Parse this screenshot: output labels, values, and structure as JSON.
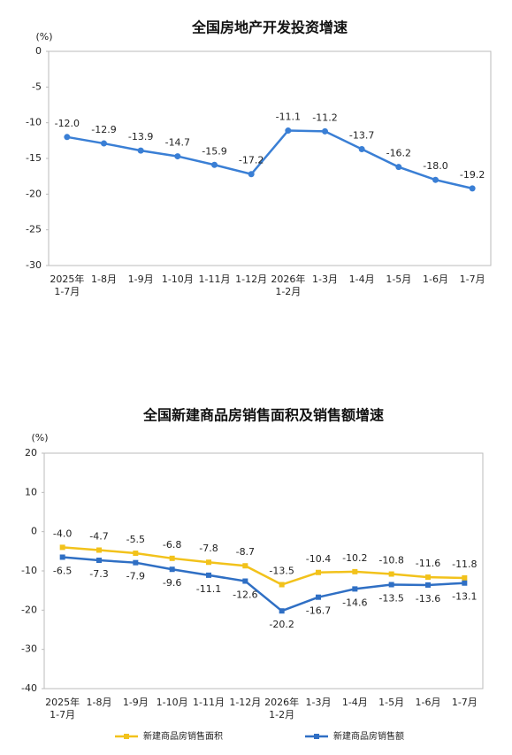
{
  "chart_data": [
    {
      "type": "line",
      "title": "全国房地产开发投资增速",
      "y_label": "(%)",
      "categories": [
        [
          "2025年",
          "1-7月"
        ],
        [
          "1-8月"
        ],
        [
          "1-9月"
        ],
        [
          "1-10月"
        ],
        [
          "1-11月"
        ],
        [
          "1-12月"
        ],
        [
          "2026年",
          "1-2月"
        ],
        [
          "1-3月"
        ],
        [
          "1-4月"
        ],
        [
          "1-5月"
        ],
        [
          "1-6月"
        ],
        [
          "1-7月"
        ]
      ],
      "series": [
        {
          "color": "#3a7fd5",
          "values": [
            -12.0,
            -12.9,
            -13.9,
            -14.7,
            -15.9,
            -17.2,
            -11.1,
            -11.2,
            -13.7,
            -16.2,
            -18.0,
            -19.2
          ],
          "value_labels": [
            "-12.0",
            "-12.9",
            "-13.9",
            "-14.7",
            "-15.9",
            "-17.2",
            "-11.1",
            "-11.2",
            "-13.7",
            "-16.2",
            "-18.0",
            "-19.2"
          ]
        }
      ],
      "ylim": [
        -30,
        0
      ],
      "yticks": [
        0,
        -5,
        -10,
        -15,
        -20,
        -25,
        -30
      ],
      "grid": false
    },
    {
      "type": "line",
      "title": "全国新建商品房销售面积及销售额增速",
      "y_label": "(%)",
      "categories": [
        [
          "2025年",
          "1-7月"
        ],
        [
          "1-8月"
        ],
        [
          "1-9月"
        ],
        [
          "1-10月"
        ],
        [
          "1-11月"
        ],
        [
          "1-12月"
        ],
        [
          "2026年",
          "1-2月"
        ],
        [
          "1-3月"
        ],
        [
          "1-4月"
        ],
        [
          "1-5月"
        ],
        [
          "1-6月"
        ],
        [
          "1-7月"
        ]
      ],
      "series": [
        {
          "name": "新建商品房销售面积",
          "color": "#f2c21b",
          "values": [
            -4.0,
            -4.7,
            -5.5,
            -6.8,
            -7.8,
            -8.7,
            -13.5,
            -10.4,
            -10.2,
            -10.8,
            -11.6,
            -11.8
          ],
          "value_labels": [
            "-4.0",
            "-4.7",
            "-5.5",
            "-6.8",
            "-7.8",
            "-8.7",
            "-13.5",
            "-10.4",
            "-10.2",
            "-10.8",
            "-11.6",
            "-11.8"
          ]
        },
        {
          "name": "新建商品房销售额",
          "color": "#2f6fc4",
          "values": [
            -6.5,
            -7.3,
            -7.9,
            -9.6,
            -11.1,
            -12.6,
            -20.2,
            -16.7,
            -14.6,
            -13.5,
            -13.6,
            -13.1
          ],
          "value_labels": [
            "-6.5",
            "-7.3",
            "-7.9",
            "-9.6",
            "-11.1",
            "-12.6",
            "-20.2",
            "-16.7",
            "-14.6",
            "-13.5",
            "-13.6",
            "-13.1"
          ]
        }
      ],
      "ylim": [
        -40,
        20
      ],
      "yticks": [
        20,
        10,
        0,
        -10,
        -20,
        -30,
        -40
      ],
      "grid": false,
      "legend": "bottom"
    }
  ]
}
